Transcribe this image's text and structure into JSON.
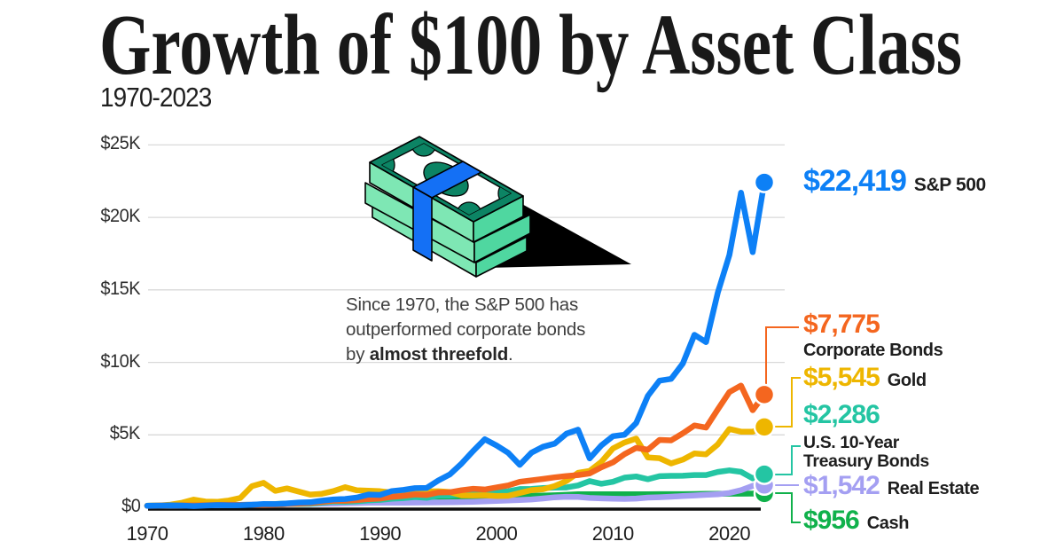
{
  "header": {
    "title": "Growth of $100 by Asset Class",
    "subtitle": "1970-2023"
  },
  "annotation": {
    "prefix": "Since 1970, the S&P 500 has outperformed corporate bonds by ",
    "bold": "almost threefold",
    "suffix": "."
  },
  "colors": {
    "grid": "#d9d9d9",
    "axis": "#0d0d0d",
    "title_text": "#191919",
    "sp500": "#0d80f6",
    "corporate_bonds": "#f4661f",
    "gold": "#eeb600",
    "treasury": "#24c5a3",
    "real_estate": "#a49ff2",
    "cash": "#10b14b"
  },
  "icons": [
    {
      "name": "money-stack-icon",
      "desc": "isometric stack of banded dollar bills"
    },
    {
      "name": "arrow-icon",
      "desc": "black wedge arrow pointing right"
    }
  ],
  "chart_data": {
    "type": "line",
    "title": "Growth of $100 by Asset Class",
    "subtitle": "1970-2023",
    "x_range": [
      1970,
      2023
    ],
    "y_range": [
      0,
      25000
    ],
    "grid": true,
    "legend_position": "right",
    "y_ticks": [
      {
        "label": "$0",
        "value": 0
      },
      {
        "label": "$5K",
        "value": 5000
      },
      {
        "label": "$10K",
        "value": 10000
      },
      {
        "label": "$15K",
        "value": 15000
      },
      {
        "label": "$20K",
        "value": 20000
      },
      {
        "label": "$25K",
        "value": 25000
      }
    ],
    "x_ticks": [
      {
        "label": "1970",
        "value": 1970
      },
      {
        "label": "1980",
        "value": 1980
      },
      {
        "label": "1990",
        "value": 1990
      },
      {
        "label": "2000",
        "value": 2000
      },
      {
        "label": "2010",
        "value": 2010
      },
      {
        "label": "2020",
        "value": 2020
      }
    ],
    "years": [
      1970,
      1971,
      1972,
      1973,
      1974,
      1975,
      1976,
      1977,
      1978,
      1979,
      1980,
      1981,
      1982,
      1983,
      1984,
      1985,
      1986,
      1987,
      1988,
      1989,
      1990,
      1991,
      1992,
      1993,
      1994,
      1995,
      1996,
      1997,
      1998,
      1999,
      2000,
      2001,
      2002,
      2003,
      2004,
      2005,
      2006,
      2007,
      2008,
      2009,
      2010,
      2011,
      2012,
      2013,
      2014,
      2015,
      2016,
      2017,
      2018,
      2019,
      2020,
      2021,
      2022,
      2023
    ],
    "series": [
      {
        "id": "sp500",
        "name": "S&P 500",
        "final_label": "$22,419",
        "final_value": 22419,
        "color": "#0d80f6",
        "values": [
          104,
          118,
          140,
          120,
          88,
          121,
          150,
          139,
          148,
          176,
          233,
          221,
          269,
          329,
          350,
          461,
          547,
          576,
          671,
          884,
          856,
          1117,
          1202,
          1323,
          1341,
          1845,
          2268,
          3025,
          3890,
          4700,
          4270,
          3760,
          2930,
          3770,
          4180,
          4390,
          5080,
          5360,
          3380,
          4270,
          4910,
          5010,
          5810,
          7690,
          8740,
          8860,
          9920,
          11900,
          11400,
          14800,
          17400,
          21700,
          17600,
          22419
        ]
      },
      {
        "id": "corporate-bonds",
        "name": "Corporate Bonds",
        "final_label": "$7,775",
        "final_value": 7775,
        "color": "#f4661f",
        "values": [
          112,
          123,
          132,
          134,
          130,
          148,
          172,
          175,
          174,
          167,
          162,
          164,
          234,
          248,
          289,
          376,
          451,
          450,
          497,
          568,
          605,
          725,
          790,
          887,
          852,
          1030,
          1043,
          1180,
          1280,
          1230,
          1370,
          1510,
          1760,
          1860,
          1960,
          2070,
          2160,
          2230,
          2340,
          2760,
          3100,
          3670,
          4100,
          3980,
          4650,
          4620,
          5100,
          5650,
          5500,
          6750,
          7950,
          8400,
          6700,
          7775
        ]
      },
      {
        "id": "gold",
        "name": "Gold",
        "final_label": "$5,545",
        "final_value": 5545,
        "color": "#eeb600",
        "values": [
          106,
          125,
          186,
          320,
          532,
          400,
          382,
          473,
          646,
          1463,
          1690,
          1137,
          1305,
          1090,
          880,
          937,
          1119,
          1387,
          1177,
          1146,
          1112,
          1014,
          952,
          1117,
          1095,
          1107,
          1054,
          827,
          822,
          831,
          780,
          794,
          991,
          1189,
          1251,
          1469,
          1814,
          2380,
          2516,
          3137,
          4060,
          4470,
          4740,
          3440,
          3390,
          3030,
          3290,
          3720,
          3660,
          4340,
          5400,
          5220,
          5210,
          5545
        ]
      },
      {
        "id": "treasury",
        "name": "U.S. 10-Year Treasury Bonds",
        "name_lines": [
          "U.S. 10-Year",
          "Treasury Bonds"
        ],
        "final_label": "$2,286",
        "final_value": 2286,
        "color": "#24c5a3",
        "values": [
          116,
          127,
          130,
          134,
          139,
          146,
          170,
          172,
          170,
          172,
          166,
          172,
          228,
          230,
          245,
          320,
          395,
          385,
          410,
          485,
          515,
          595,
          635,
          710,
          655,
          810,
          815,
          895,
          1010,
          930,
          1060,
          1100,
          1260,
          1270,
          1330,
          1360,
          1370,
          1510,
          1810,
          1630,
          1760,
          2050,
          2130,
          1940,
          2150,
          2170,
          2180,
          2230,
          2230,
          2440,
          2550,
          2450,
          2000,
          2286
        ]
      },
      {
        "id": "real-estate",
        "name": "Real Estate",
        "final_label": "$1,542",
        "final_value": 1542,
        "color": "#a49ff2",
        "values": [
          100,
          104,
          110,
          118,
          126,
          133,
          142,
          155,
          172,
          191,
          205,
          215,
          219,
          227,
          236,
          248,
          264,
          283,
          302,
          317,
          321,
          320,
          324,
          330,
          338,
          345,
          355,
          368,
          387,
          410,
          440,
          472,
          506,
          547,
          610,
          690,
          730,
          715,
          650,
          615,
          600,
          580,
          605,
          670,
          700,
          735,
          775,
          820,
          865,
          900,
          990,
          1180,
          1480,
          1542
        ]
      },
      {
        "id": "cash",
        "name": "Cash",
        "final_label": "$956",
        "final_value": 956,
        "color": "#10b14b",
        "values": [
          106,
          111,
          115,
          123,
          133,
          141,
          148,
          155,
          166,
          183,
          204,
          234,
          259,
          282,
          310,
          334,
          355,
          375,
          399,
          433,
          467,
          493,
          510,
          526,
          548,
          579,
          609,
          641,
          672,
          703,
          745,
          773,
          786,
          794,
          805,
          830,
          864,
          899,
          905,
          906,
          907,
          907,
          908,
          908,
          909,
          909,
          912,
          919,
          928,
          938,
          941,
          942,
          948,
          956
        ]
      }
    ]
  }
}
